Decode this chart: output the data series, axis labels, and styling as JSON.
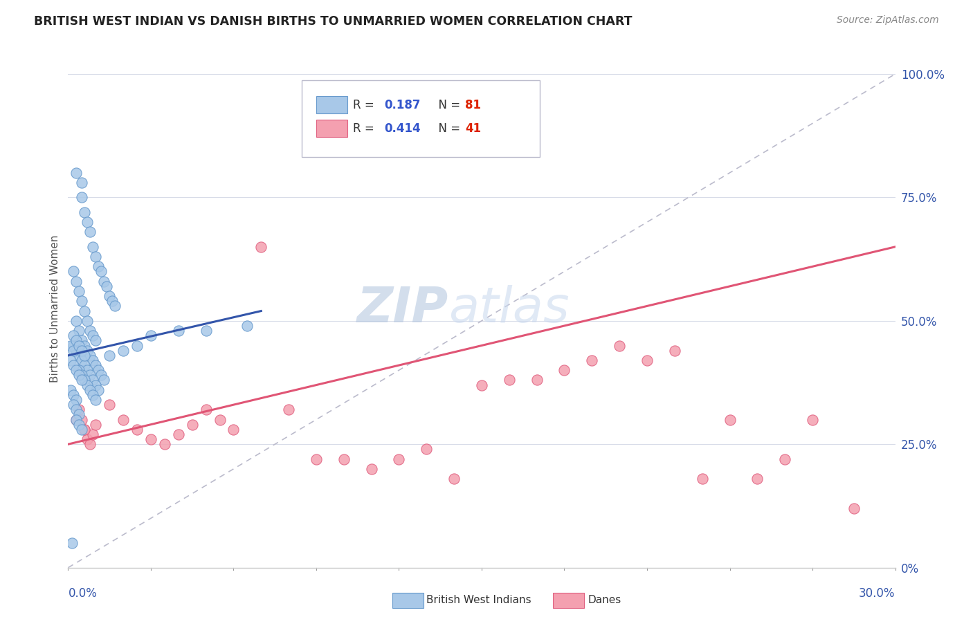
{
  "title": "BRITISH WEST INDIAN VS DANISH BIRTHS TO UNMARRIED WOMEN CORRELATION CHART",
  "source": "Source: ZipAtlas.com",
  "ylabel_label": "Births to Unmarried Women",
  "xmin": 0.0,
  "xmax": 30.0,
  "ymin": 0.0,
  "ymax": 100.0,
  "legend_r1": "0.187",
  "legend_n1": "81",
  "legend_r2": "0.414",
  "legend_n2": "41",
  "blue_fill": "#a8c8e8",
  "blue_edge": "#6699cc",
  "pink_fill": "#f4a0b0",
  "pink_edge": "#e06080",
  "blue_line_color": "#3355aa",
  "pink_line_color": "#e05575",
  "dashed_line_color": "#bbbbcc",
  "grid_color": "#d8dce8",
  "watermark": "ZIPatlas",
  "watermark_color": "#ccd8ee",
  "ytick_positions": [
    0,
    25,
    50,
    75,
    100
  ],
  "ytick_labels": [
    "0%",
    "25.0%",
    "50.0%",
    "75.0%",
    "100.0%"
  ],
  "blue_x": [
    0.3,
    0.5,
    0.5,
    0.6,
    0.7,
    0.8,
    0.9,
    1.0,
    1.1,
    1.2,
    1.3,
    1.4,
    1.5,
    1.6,
    1.7,
    0.2,
    0.3,
    0.4,
    0.5,
    0.6,
    0.7,
    0.8,
    0.9,
    1.0,
    0.3,
    0.4,
    0.5,
    0.6,
    0.7,
    0.8,
    0.9,
    1.0,
    1.1,
    1.2,
    1.3,
    0.2,
    0.3,
    0.4,
    0.5,
    0.6,
    0.7,
    0.8,
    0.9,
    1.0,
    1.1,
    0.4,
    0.5,
    0.6,
    0.7,
    0.8,
    0.9,
    1.0,
    1.5,
    2.0,
    2.5,
    3.0,
    4.0,
    5.0,
    6.5,
    0.1,
    0.2,
    0.1,
    0.2,
    0.3,
    0.4,
    0.5,
    0.1,
    0.2,
    0.3,
    0.2,
    0.3,
    0.4,
    0.3,
    0.4,
    0.5,
    0.2,
    0.3,
    0.4,
    0.5,
    0.6,
    0.15
  ],
  "blue_y": [
    80,
    78,
    75,
    72,
    70,
    68,
    65,
    63,
    61,
    60,
    58,
    57,
    55,
    54,
    53,
    60,
    58,
    56,
    54,
    52,
    50,
    48,
    47,
    46,
    50,
    48,
    46,
    45,
    44,
    43,
    42,
    41,
    40,
    39,
    38,
    45,
    44,
    43,
    42,
    41,
    40,
    39,
    38,
    37,
    36,
    40,
    39,
    38,
    37,
    36,
    35,
    34,
    43,
    44,
    45,
    47,
    48,
    48,
    49,
    45,
    44,
    42,
    41,
    40,
    39,
    38,
    36,
    35,
    34,
    33,
    32,
    31,
    30,
    29,
    28,
    47,
    46,
    45,
    44,
    43,
    5
  ],
  "pink_x": [
    0.4,
    0.5,
    0.6,
    0.7,
    0.8,
    0.9,
    1.0,
    1.5,
    2.0,
    2.5,
    3.0,
    3.5,
    4.0,
    4.5,
    5.0,
    5.5,
    6.0,
    7.0,
    8.0,
    9.0,
    10.0,
    11.0,
    12.0,
    13.0,
    14.0,
    15.0,
    16.0,
    17.0,
    18.0,
    19.0,
    20.0,
    21.0,
    22.0,
    23.0,
    24.0,
    25.0,
    26.0,
    27.0,
    28.5,
    0.3,
    0.6
  ],
  "pink_y": [
    32,
    30,
    28,
    26,
    25,
    27,
    29,
    33,
    30,
    28,
    26,
    25,
    27,
    29,
    32,
    30,
    28,
    65,
    32,
    22,
    22,
    20,
    22,
    24,
    18,
    37,
    38,
    38,
    40,
    42,
    45,
    42,
    44,
    18,
    30,
    18,
    22,
    30,
    12,
    30,
    28
  ],
  "blue_line_x0": 0.0,
  "blue_line_x1": 7.0,
  "blue_line_y0": 43.0,
  "blue_line_y1": 52.0,
  "pink_line_x0": 0.0,
  "pink_line_x1": 30.0,
  "pink_line_y0": 25.0,
  "pink_line_y1": 65.0,
  "diag_line_x0": 0.0,
  "diag_line_x1": 30.0,
  "diag_line_y0": 0.0,
  "diag_line_y1": 100.0
}
